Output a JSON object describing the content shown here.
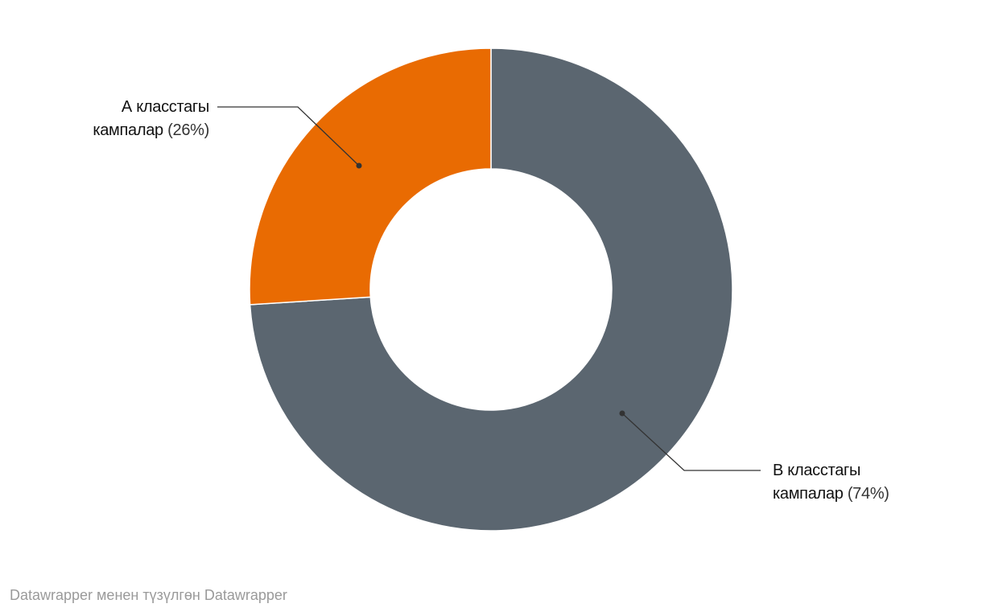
{
  "chart_data": {
    "type": "pie",
    "categories": [
      "В класстагы кампалар",
      "А класстагы кампалар"
    ],
    "values": [
      74,
      26
    ],
    "value_labels": [
      "(74%)",
      "(26%)"
    ],
    "colors": [
      "#5b6670",
      "#e96b02"
    ],
    "footer": "Datawrapper менен түзүлгөн Datawrapper"
  }
}
